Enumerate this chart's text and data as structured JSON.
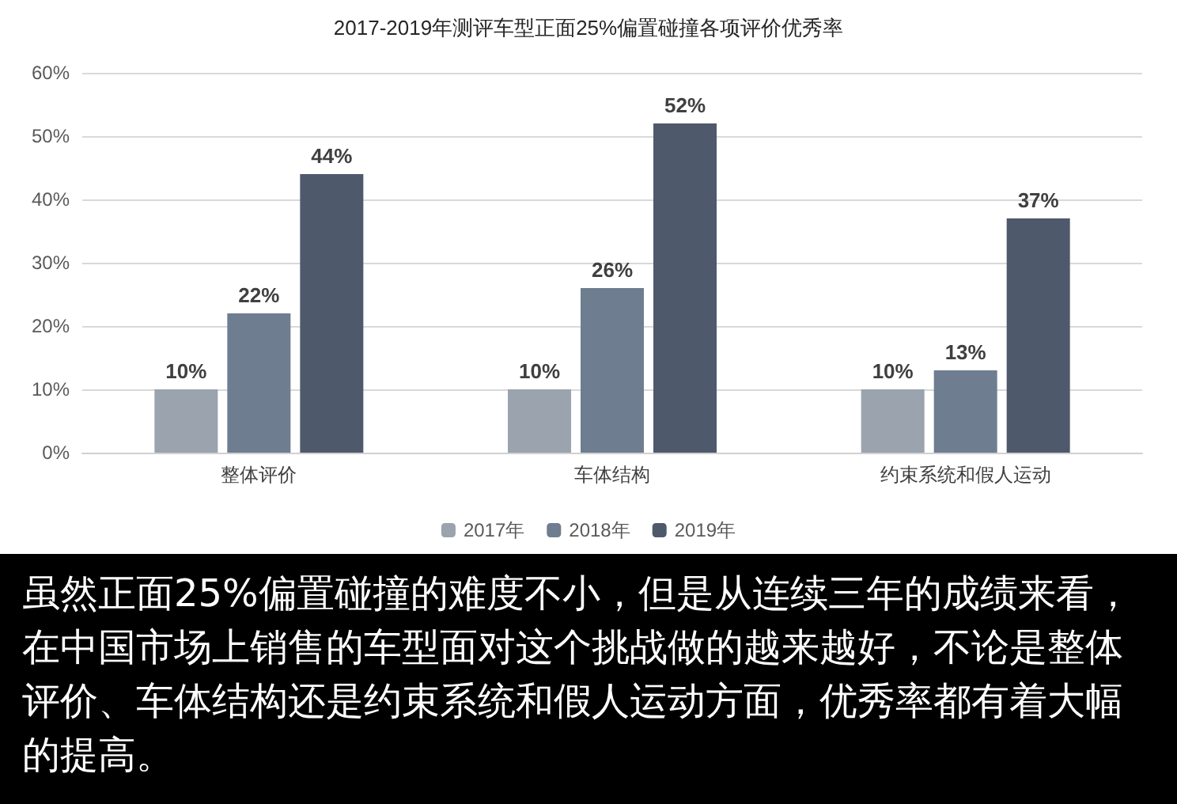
{
  "chart_data": {
    "type": "bar",
    "title": "2017-2019年测评车型正面25%偏置碰撞各项评价优秀率",
    "categories": [
      "整体评价",
      "车体结构",
      "约束系统和假人运动"
    ],
    "series": [
      {
        "name": "2017年",
        "color": "#9aa3ae",
        "values": [
          10,
          10,
          10
        ],
        "value_labels": [
          "10%",
          "10%",
          "10%"
        ]
      },
      {
        "name": "2018年",
        "color": "#6f7d90",
        "values": [
          22,
          26,
          13
        ],
        "value_labels": [
          "22%",
          "26%",
          "13%"
        ]
      },
      {
        "name": "2019年",
        "color": "#4e5a6c",
        "values": [
          44,
          52,
          37
        ],
        "value_labels": [
          "44%",
          "52%",
          "37%"
        ]
      }
    ],
    "ylim": [
      0,
      60
    ],
    "yticks": [
      {
        "value": 0,
        "label": "0%"
      },
      {
        "value": 10,
        "label": "10%"
      },
      {
        "value": 20,
        "label": "20%"
      },
      {
        "value": 30,
        "label": "30%"
      },
      {
        "value": 40,
        "label": "40%"
      },
      {
        "value": 50,
        "label": "50%"
      },
      {
        "value": 60,
        "label": "60%"
      }
    ],
    "grid": "y",
    "legend": "bottom",
    "annotations": [
      "虽然正面25%偏置碰撞的难度不小，但是从连续三年的成绩来看，在中国市场上销售的车型面对这个挑战做的越来越好，不论是整体评价、车体结构还是约束系统和假人运动方面，优秀率都有着大幅的提高。"
    ]
  }
}
